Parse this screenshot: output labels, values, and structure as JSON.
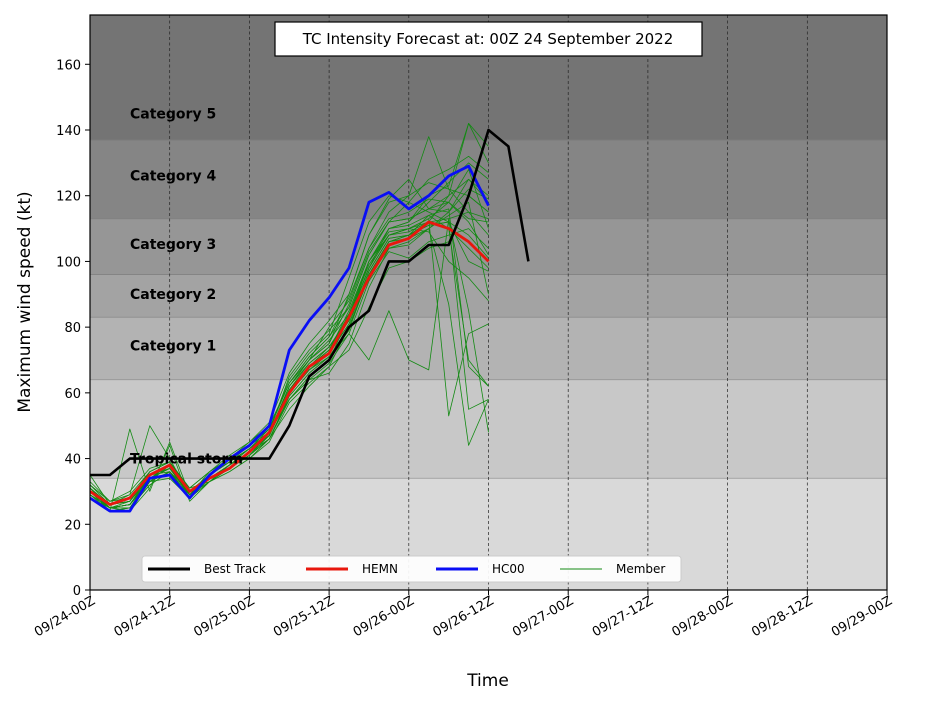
{
  "chart_data": {
    "type": "line",
    "title": "TC Intensity Forecast at: 00Z 24 September 2022",
    "xlabel": "Time",
    "ylabel": "Maximum wind speed (kt)",
    "ylim": [
      0,
      175
    ],
    "yticks": [
      0,
      20,
      40,
      60,
      80,
      100,
      120,
      140,
      160
    ],
    "xlim": [
      0,
      20
    ],
    "xticks": [
      {
        "pos": 0,
        "label": "09/24-00Z"
      },
      {
        "pos": 2,
        "label": "09/24-12Z"
      },
      {
        "pos": 4,
        "label": "09/25-00Z"
      },
      {
        "pos": 6,
        "label": "09/25-12Z"
      },
      {
        "pos": 8,
        "label": "09/26-00Z"
      },
      {
        "pos": 10,
        "label": "09/26-12Z"
      },
      {
        "pos": 12,
        "label": "09/27-00Z"
      },
      {
        "pos": 14,
        "label": "09/27-12Z"
      },
      {
        "pos": 16,
        "label": "09/28-00Z"
      },
      {
        "pos": 18,
        "label": "09/28-12Z"
      },
      {
        "pos": 20,
        "label": "09/29-00Z"
      }
    ],
    "x_step_hours": 6,
    "grid": "vertical dashed at x ticks",
    "legend_position": "lower-center",
    "bands": [
      {
        "label": "",
        "min": 0,
        "max": 34,
        "color": "#d9d9d9"
      },
      {
        "label": "Tropical storm",
        "min": 34,
        "max": 64,
        "color": "#c8c8c8"
      },
      {
        "label": "Category 1",
        "min": 64,
        "max": 83,
        "color": "#b3b3b3"
      },
      {
        "label": "Category 2",
        "min": 83,
        "max": 96,
        "color": "#a3a3a3"
      },
      {
        "label": "Category 3",
        "min": 96,
        "max": 113,
        "color": "#969696"
      },
      {
        "label": "Category 4",
        "min": 113,
        "max": 137,
        "color": "#858585"
      },
      {
        "label": "Category 5",
        "min": 137,
        "max": 175,
        "color": "#747474"
      }
    ],
    "series": [
      {
        "name": "Best Track",
        "color": "#000000",
        "width": 2.6,
        "values": [
          35,
          35,
          40,
          40,
          40,
          40,
          40,
          40,
          40,
          40,
          50,
          65,
          70,
          80,
          85,
          100,
          100,
          105,
          105,
          120,
          140,
          135,
          100
        ]
      },
      {
        "name": "HEMN",
        "color": "#e8170d",
        "width": 2.8,
        "values": [
          30,
          26,
          28,
          35,
          38,
          30,
          34,
          37,
          42,
          48,
          60,
          68,
          72,
          83,
          95,
          105,
          107,
          112,
          110,
          106,
          100
        ]
      },
      {
        "name": "HC00",
        "color": "#0a0ef5",
        "width": 2.8,
        "values": [
          28,
          24,
          24,
          34,
          35,
          28,
          35,
          40,
          44,
          50,
          73,
          82,
          89,
          98,
          118,
          121,
          116,
          120,
          126,
          129,
          117
        ]
      },
      {
        "name": "Member",
        "color": "#138a13",
        "width": 0.8,
        "members": [
          [
            29,
            25,
            26,
            33,
            38,
            29,
            34,
            38,
            42,
            47,
            62,
            70,
            75,
            90,
            108,
            118,
            120,
            124,
            122,
            120,
            115
          ],
          [
            31,
            26,
            27,
            36,
            39,
            30,
            35,
            39,
            43,
            49,
            64,
            72,
            78,
            95,
            112,
            120,
            118,
            115,
            112,
            108,
            101
          ],
          [
            30,
            24,
            49,
            30,
            45,
            29,
            35,
            40,
            44,
            48,
            58,
            65,
            70,
            83,
            98,
            110,
            112,
            118,
            124,
            130,
            125
          ],
          [
            32,
            27,
            28,
            34,
            37,
            31,
            33,
            36,
            40,
            46,
            55,
            62,
            68,
            80,
            96,
            106,
            108,
            114,
            110,
            104,
            98
          ],
          [
            28,
            25,
            25,
            32,
            36,
            28,
            34,
            37,
            41,
            47,
            60,
            68,
            73,
            85,
            100,
            108,
            110,
            112,
            120,
            125,
            118
          ],
          [
            35,
            26,
            29,
            50,
            40,
            29,
            36,
            41,
            45,
            50,
            63,
            70,
            80,
            88,
            104,
            115,
            120,
            138,
            122,
            115,
            108
          ],
          [
            30,
            25,
            24,
            31,
            44,
            27,
            33,
            38,
            43,
            48,
            65,
            73,
            79,
            86,
            102,
            112,
            118,
            125,
            128,
            132,
            127
          ],
          [
            29,
            24,
            24,
            33,
            34,
            28,
            34,
            38,
            42,
            46,
            58,
            64,
            66,
            75,
            92,
            104,
            105,
            110,
            115,
            122,
            119
          ],
          [
            31,
            25,
            26,
            35,
            38,
            30,
            34,
            37,
            41,
            48,
            60,
            67,
            71,
            78,
            94,
            103,
            101,
            106,
            108,
            110,
            104
          ],
          [
            30,
            25,
            25,
            34,
            35,
            29,
            35,
            39,
            43,
            47,
            62,
            70,
            76,
            84,
            100,
            110,
            112,
            120,
            123,
            142,
            135
          ],
          [
            33,
            27,
            30,
            37,
            39,
            31,
            36,
            40,
            45,
            51,
            66,
            75,
            82,
            90,
            108,
            119,
            125,
            116,
            120,
            142,
            130
          ],
          [
            29,
            25,
            26,
            34,
            37,
            29,
            33,
            36,
            40,
            45,
            57,
            63,
            68,
            73,
            86,
            98,
            100,
            104,
            106,
            120,
            115
          ],
          [
            30,
            26,
            27,
            35,
            36,
            30,
            35,
            39,
            44,
            49,
            63,
            71,
            77,
            89,
            104,
            113,
            115,
            119,
            118,
            112,
            102
          ],
          [
            28,
            24,
            25,
            33,
            36,
            28,
            34,
            38,
            42,
            47,
            61,
            69,
            74,
            82,
            98,
            108,
            110,
            109,
            100,
            95,
            88
          ],
          [
            31,
            25,
            27,
            34,
            38,
            29,
            34,
            37,
            41,
            46,
            59,
            66,
            71,
            79,
            96,
            106,
            108,
            111,
            112,
            100,
            97
          ],
          [
            30,
            26,
            28,
            36,
            39,
            30,
            35,
            39,
            43,
            48,
            62,
            70,
            75,
            87,
            103,
            112,
            113,
            116,
            115,
            125,
            120
          ],
          [
            32,
            26,
            27,
            35,
            37,
            30,
            34,
            38,
            42,
            47,
            60,
            68,
            73,
            82,
            100,
            109,
            110,
            113,
            118,
            128,
            110
          ],
          [
            29,
            25,
            26,
            33,
            36,
            28,
            33,
            37,
            41,
            46,
            58,
            65,
            70,
            80,
            95,
            104,
            106,
            110,
            114,
            118,
            90
          ],
          [
            30,
            25,
            26,
            34,
            37,
            29,
            34,
            38,
            42,
            47,
            61,
            68,
            73,
            84,
            99,
            108,
            109,
            112,
            113,
            115,
            113
          ],
          [
            31,
            26,
            27,
            35,
            38,
            30,
            35,
            39,
            43,
            48,
            62,
            69,
            74,
            83,
            100,
            110,
            111,
            114,
            116,
            68,
            62
          ],
          [
            30,
            25,
            26,
            34,
            37,
            29,
            34,
            38,
            42,
            47,
            60,
            67,
            72,
            81,
            97,
            107,
            108,
            111,
            112,
            55,
            58
          ],
          [
            29,
            25,
            26,
            33,
            36,
            29,
            34,
            37,
            41,
            46,
            59,
            66,
            71,
            80,
            96,
            106,
            107,
            110,
            87,
            44,
            58
          ],
          [
            30,
            26,
            27,
            35,
            38,
            30,
            35,
            39,
            43,
            48,
            61,
            68,
            74,
            83,
            98,
            108,
            110,
            113,
            53,
            78,
            81
          ],
          [
            28,
            24,
            25,
            32,
            36,
            28,
            33,
            37,
            41,
            46,
            58,
            64,
            69,
            78,
            70,
            85,
            70,
            67,
            113,
            85,
            48
          ],
          [
            30,
            25,
            26,
            34,
            37,
            29,
            34,
            38,
            42,
            47,
            60,
            67,
            72,
            81,
            97,
            107,
            108,
            112,
            110,
            70,
            62
          ],
          [
            32,
            27,
            29,
            36,
            39,
            31,
            36,
            40,
            44,
            49,
            63,
            71,
            77,
            86,
            102,
            112,
            113,
            116,
            118,
            113,
            112
          ]
        ]
      }
    ],
    "legend": [
      "Best Track",
      "HEMN",
      "HC00",
      "Member"
    ]
  }
}
